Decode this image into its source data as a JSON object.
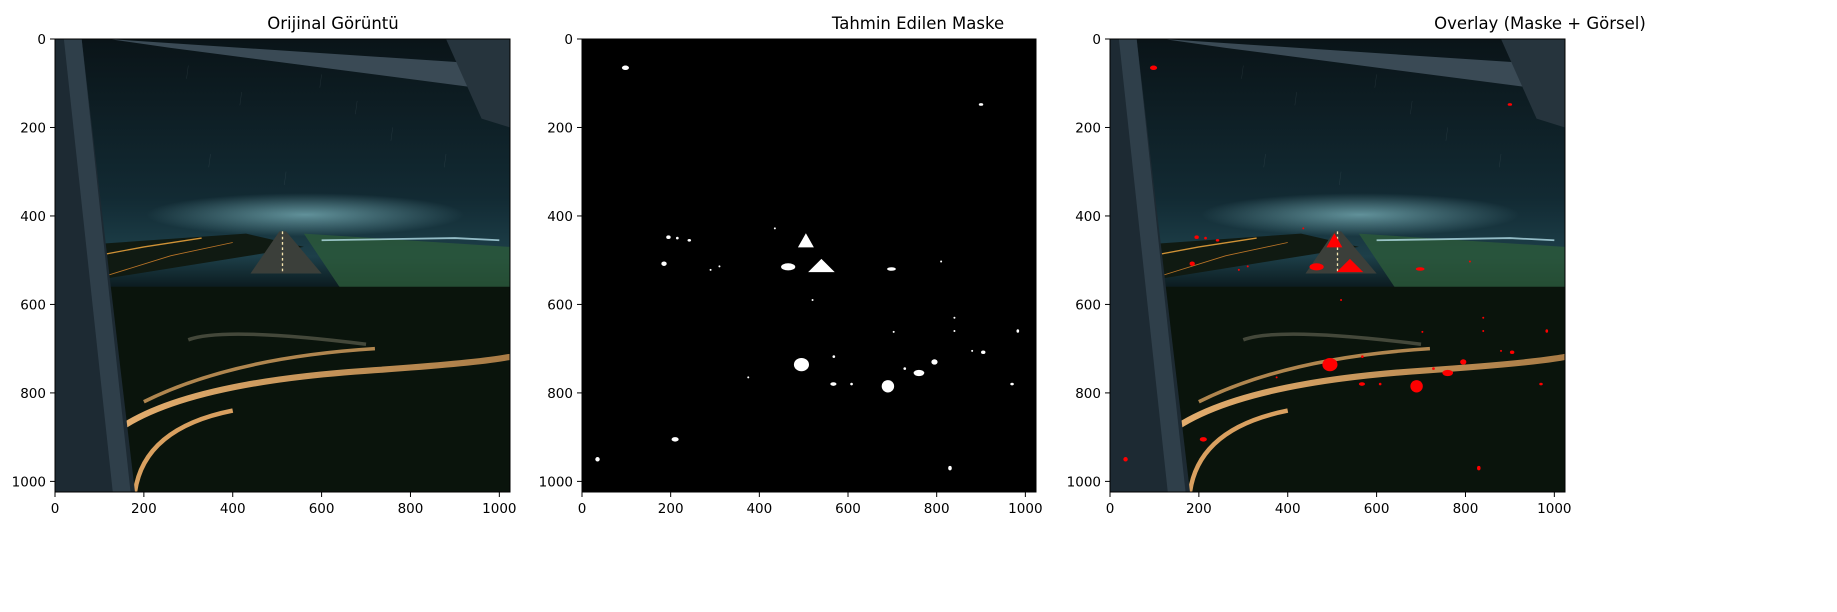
{
  "panels": [
    {
      "title": "Orijinal Görüntü",
      "kind": "original"
    },
    {
      "title": "Tahmin Edilen Maske",
      "kind": "mask"
    },
    {
      "title": "Overlay (Maske + Görsel)",
      "kind": "overlay"
    }
  ],
  "axes": {
    "x_ticks": [
      "0",
      "200",
      "400",
      "600",
      "800",
      "1000"
    ],
    "y_ticks": [
      "0",
      "200",
      "400",
      "600",
      "800",
      "1000"
    ],
    "x_values": [
      0,
      200,
      400,
      600,
      800,
      1000
    ],
    "y_values": [
      0,
      200,
      400,
      600,
      800,
      1000
    ],
    "extent": 1024
  },
  "colors": {
    "mask_fg": "#ffffff",
    "mask_bg": "#000000",
    "overlay": "#ff0000"
  },
  "mask_blobs": [
    {
      "x": 98,
      "y": 65,
      "rx": 8,
      "ry": 5
    },
    {
      "x": 900,
      "y": 148,
      "rx": 5,
      "ry": 3
    },
    {
      "x": 195,
      "y": 448,
      "rx": 5,
      "ry": 4
    },
    {
      "x": 215,
      "y": 450,
      "rx": 3,
      "ry": 3
    },
    {
      "x": 242,
      "y": 455,
      "rx": 4,
      "ry": 3
    },
    {
      "x": 185,
      "y": 508,
      "rx": 6,
      "ry": 5
    },
    {
      "x": 435,
      "y": 428,
      "rx": 2,
      "ry": 2
    },
    {
      "x": 505,
      "y": 455,
      "rx": 18,
      "ry": 16,
      "shape": "tri"
    },
    {
      "x": 465,
      "y": 515,
      "rx": 16,
      "ry": 8
    },
    {
      "x": 540,
      "y": 512,
      "rx": 30,
      "ry": 15,
      "shape": "tri"
    },
    {
      "x": 698,
      "y": 520,
      "rx": 10,
      "ry": 4
    },
    {
      "x": 810,
      "y": 503,
      "rx": 2,
      "ry": 2
    },
    {
      "x": 495,
      "y": 736,
      "rx": 17,
      "ry": 15
    },
    {
      "x": 568,
      "y": 718,
      "rx": 3,
      "ry": 3
    },
    {
      "x": 567,
      "y": 780,
      "rx": 7,
      "ry": 4
    },
    {
      "x": 608,
      "y": 780,
      "rx": 3,
      "ry": 3
    },
    {
      "x": 690,
      "y": 785,
      "rx": 14,
      "ry": 14
    },
    {
      "x": 760,
      "y": 755,
      "rx": 12,
      "ry": 7
    },
    {
      "x": 728,
      "y": 745,
      "rx": 3,
      "ry": 3
    },
    {
      "x": 795,
      "y": 730,
      "rx": 7,
      "ry": 6
    },
    {
      "x": 905,
      "y": 708,
      "rx": 5,
      "ry": 4
    },
    {
      "x": 970,
      "y": 780,
      "rx": 4,
      "ry": 3
    },
    {
      "x": 983,
      "y": 660,
      "rx": 3,
      "ry": 4
    },
    {
      "x": 703,
      "y": 662,
      "rx": 2,
      "ry": 2
    },
    {
      "x": 840,
      "y": 660,
      "rx": 2,
      "ry": 2
    },
    {
      "x": 840,
      "y": 630,
      "rx": 2,
      "ry": 2
    },
    {
      "x": 880,
      "y": 705,
      "rx": 2,
      "ry": 2
    },
    {
      "x": 210,
      "y": 905,
      "rx": 8,
      "ry": 5
    },
    {
      "x": 35,
      "y": 950,
      "rx": 5,
      "ry": 5
    },
    {
      "x": 830,
      "y": 970,
      "rx": 4,
      "ry": 5
    },
    {
      "x": 375,
      "y": 765,
      "rx": 2,
      "ry": 2
    },
    {
      "x": 520,
      "y": 590,
      "rx": 2,
      "ry": 2
    },
    {
      "x": 290,
      "y": 522,
      "rx": 2,
      "ry": 2
    },
    {
      "x": 310,
      "y": 514,
      "rx": 2,
      "ry": 2
    }
  ]
}
